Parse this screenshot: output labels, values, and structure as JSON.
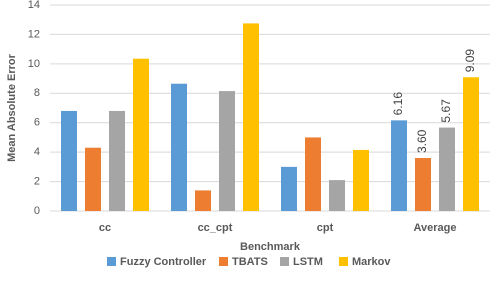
{
  "chart_data": {
    "type": "bar",
    "x_label": "Benchmark",
    "y_label": "Mean Absolute Error",
    "categories": [
      "cc",
      "cc_cpt",
      "cpt",
      "Average"
    ],
    "series": [
      {
        "name": "Fuzzy Controller",
        "color": "#5b9bd5",
        "values": [
          6.8,
          8.65,
          3.0,
          6.16
        ],
        "value_labels": [
          null,
          null,
          null,
          "6.16"
        ]
      },
      {
        "name": "TBATS",
        "color": "#ed7d31",
        "values": [
          4.3,
          1.4,
          5.0,
          3.6
        ],
        "value_labels": [
          null,
          null,
          null,
          "3.60"
        ]
      },
      {
        "name": "LSTM",
        "color": "#a5a5a5",
        "values": [
          6.8,
          8.15,
          2.1,
          5.67
        ],
        "value_labels": [
          null,
          null,
          null,
          "5.67"
        ]
      },
      {
        "name": "Markov",
        "color": "#ffc000",
        "values": [
          10.35,
          12.75,
          4.15,
          9.09
        ],
        "value_labels": [
          null,
          null,
          null,
          "9.09"
        ]
      }
    ],
    "ylim": [
      0,
      14
    ],
    "yticks": [
      0,
      2,
      4,
      6,
      8,
      10,
      12,
      14
    ],
    "grid": true,
    "legend": "bottom"
  }
}
